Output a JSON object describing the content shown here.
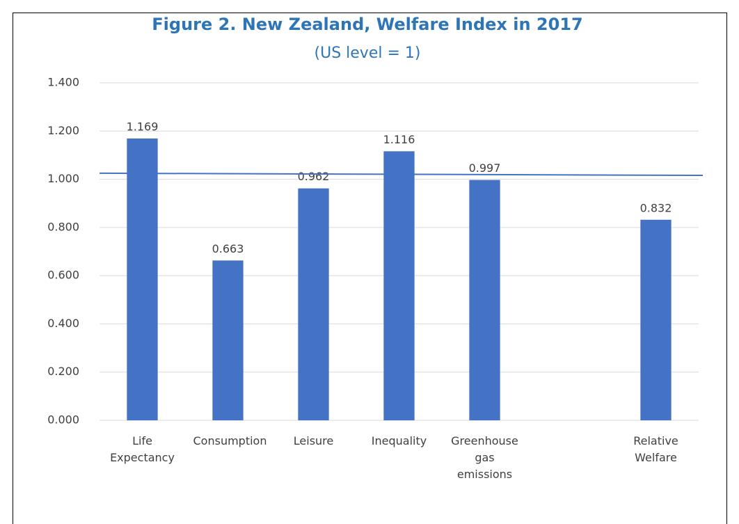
{
  "chart_data": {
    "type": "bar",
    "title": "Figure 2. New Zealand, Welfare Index in 2017",
    "subtitle": "(US level = 1)",
    "categories": [
      "Life Expectancy",
      "Consumption",
      "Leisure",
      "Inequality",
      "Greenhouse gas emissions",
      null,
      "Relative Welfare"
    ],
    "values": [
      1.169,
      0.663,
      0.962,
      1.116,
      0.997,
      null,
      0.832
    ],
    "color": "#4472c4",
    "ylim": [
      0,
      1.4
    ],
    "yticks": [
      {
        "value": 0,
        "label": "0.000"
      },
      {
        "value": 0.2,
        "label": "0.200"
      },
      {
        "value": 0.4,
        "label": "0.400"
      },
      {
        "value": 0.6,
        "label": "0.600"
      },
      {
        "value": 0.8,
        "label": "0.800"
      },
      {
        "value": 1,
        "label": "1.000"
      },
      {
        "value": 1.2,
        "label": "1.200"
      },
      {
        "value": 1.4,
        "label": "1.400"
      }
    ],
    "grid": true,
    "reference_line": {
      "values": [
        1.025,
        1.016
      ],
      "color": "#4472c4"
    }
  }
}
